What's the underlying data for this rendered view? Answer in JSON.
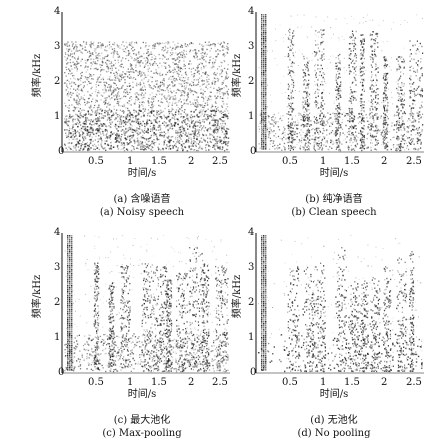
{
  "panels": [
    {
      "id": "a",
      "ylabel": "频率/kHz",
      "y_ticks": [
        "0",
        "1",
        "2",
        "3",
        "4"
      ],
      "x_ticks": [
        "0.5",
        "1",
        "1.5",
        "2",
        "2.5"
      ],
      "xlabel": "时间/s",
      "caption_cn": "(a) 含噪语音",
      "caption_en": "(a) Noisy speech"
    },
    {
      "id": "b",
      "ylabel": "频率/kHz",
      "y_ticks": [
        "0",
        "1",
        "2",
        "3",
        "4"
      ],
      "x_ticks": [
        "0.5",
        "1",
        "1.5",
        "2",
        "2.5"
      ],
      "xlabel": "时间/s",
      "caption_cn": "(b) 纯净语音",
      "caption_en": "(b) Clean speech"
    },
    {
      "id": "c",
      "ylabel": "频率/kHz",
      "y_ticks": [
        "0",
        "1",
        "2",
        "3",
        "4"
      ],
      "x_ticks": [
        "0.5",
        "1",
        "1.5",
        "2",
        "2.5"
      ],
      "xlabel": "时间/s",
      "caption_cn": "(c) 最大池化",
      "caption_en": "(c) Max-pooling"
    },
    {
      "id": "d",
      "ylabel": "频率/kHz",
      "y_ticks": [
        "0",
        "1",
        "2",
        "3",
        "4"
      ],
      "x_ticks": [
        "0.5",
        "1",
        "1.5",
        "2",
        "2.5"
      ],
      "xlabel": "时间/s",
      "caption_cn": "(d) 无池化",
      "caption_en": "(d) No pooling"
    }
  ],
  "colors": {
    "ink": "#111111",
    "noise": "#777777",
    "speech": "#222222"
  }
}
